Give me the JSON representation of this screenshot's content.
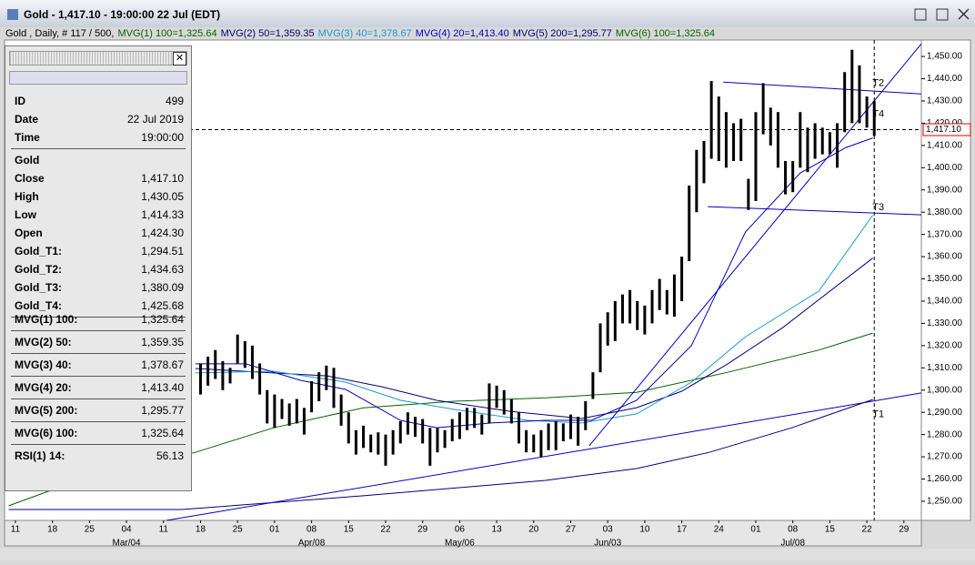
{
  "window": {
    "title": "Gold - 1,417.10 - 19:00:00  22 Jul (EDT)"
  },
  "legend": {
    "prefix": "Gold , Daily, # 117 / 500,",
    "items": [
      {
        "text": "MVG(1) 100=1,325.64",
        "color": "#006400"
      },
      {
        "text": "MVG(2) 50=1,359.35",
        "color": "#000080"
      },
      {
        "text": "MVG(3) 40=1,378.67",
        "color": "#1a9ad6"
      },
      {
        "text": "MVG(4) 20=1,413.40",
        "color": "#0000c0"
      },
      {
        "text": "MVG(5) 200=1,295.77",
        "color": "#000080"
      },
      {
        "text": "MVG(6) 100=1,325.64",
        "color": "#006400"
      }
    ]
  },
  "panel": {
    "rows": [
      {
        "label": "ID",
        "value": "499"
      },
      {
        "label": "Date",
        "value": "22 Jul 2019"
      },
      {
        "label": "Time",
        "value": "19:00:00"
      },
      {
        "label": "Gold"
      },
      {
        "label": "Close",
        "value": "1,417.10"
      },
      {
        "label": "High",
        "value": "1,430.05"
      },
      {
        "label": "Low",
        "value": "1,414.33"
      },
      {
        "label": "Open",
        "value": "1,424.30"
      },
      {
        "label": "Gold_T1:",
        "value": "1,294.51"
      },
      {
        "label": "Gold_T2:",
        "value": "1,434.63"
      },
      {
        "label": "Gold_T3:",
        "value": "1,380.09"
      },
      {
        "label": "Gold_T4:",
        "value": "1,425.68"
      },
      {
        "label": "MVG(1) 100:",
        "value": "1,325.64"
      },
      {
        "label": "MVG(2) 50:",
        "value": "1,359.35"
      },
      {
        "label": "MVG(3) 40:",
        "value": "1,378.67"
      },
      {
        "label": "MVG(4) 20:",
        "value": "1,413.40"
      },
      {
        "label": "MVG(5) 200:",
        "value": "1,295.77"
      },
      {
        "label": "MVG(6) 100:",
        "value": "1,325.64"
      },
      {
        "label": "RSI(1) 14:",
        "value": "56.13"
      }
    ]
  },
  "chart_data": {
    "type": "ohlc",
    "color": "#000000",
    "x": [
      25,
      26,
      27,
      28,
      29,
      30,
      31,
      32,
      33,
      34,
      35,
      36,
      37,
      38,
      39,
      40,
      41,
      42,
      43,
      44,
      45,
      46,
      47,
      48,
      49,
      50,
      51,
      52,
      53,
      54,
      55,
      56,
      57,
      58,
      59,
      60,
      61,
      62,
      63,
      64,
      65,
      66,
      67,
      68,
      69,
      70,
      71,
      72,
      73,
      74,
      75,
      76,
      77,
      78,
      79,
      80,
      81,
      82,
      83,
      84,
      85,
      86,
      87,
      88,
      89,
      90,
      91,
      92,
      93,
      94,
      95,
      96,
      97,
      98,
      99,
      100,
      101,
      102,
      103,
      104,
      105,
      106,
      107,
      108,
      109,
      110,
      111,
      112,
      113,
      114,
      115,
      116
    ],
    "high": [
      1312,
      1315,
      1318,
      1313,
      1310,
      1325,
      1322,
      1320,
      1312,
      1300,
      1298,
      1296,
      1294,
      1296,
      1292,
      1304,
      1308,
      1311,
      1310,
      1298,
      1290,
      1282,
      1284,
      1280,
      1281,
      1280,
      1282,
      1286,
      1290,
      1288,
      1287,
      1283,
      1283,
      1282,
      1287,
      1290,
      1292,
      1292,
      1289,
      1303,
      1302,
      1300,
      1296,
      1290,
      1282,
      1280,
      1282,
      1285,
      1286,
      1285,
      1289,
      1288,
      1295,
      1308,
      1330,
      1335,
      1340,
      1343,
      1345,
      1340,
      1338,
      1345,
      1350,
      1345,
      1352,
      1360,
      1392,
      1408,
      1412,
      1439,
      1432,
      1425,
      1420,
      1422,
      1395,
      1425,
      1438,
      1427,
      1425,
      1403,
      1403,
      1425,
      1418,
      1420,
      1418,
      1416,
      1420,
      1443,
      1453,
      1446,
      1432,
      1430.05
    ],
    "low": [
      1298,
      1302,
      1305,
      1300,
      1303,
      1312,
      1310,
      1305,
      1298,
      1285,
      1283,
      1287,
      1284,
      1285,
      1280,
      1290,
      1295,
      1300,
      1292,
      1284,
      1276,
      1271,
      1274,
      1272,
      1271,
      1266,
      1271,
      1276,
      1280,
      1279,
      1276,
      1266,
      1272,
      1274,
      1277,
      1278,
      1282,
      1283,
      1280,
      1285,
      1292,
      1289,
      1285,
      1276,
      1272,
      1272,
      1270,
      1273,
      1273,
      1277,
      1278,
      1275,
      1282,
      1296,
      1308,
      1320,
      1322,
      1330,
      1330,
      1327,
      1325,
      1330,
      1336,
      1334,
      1333,
      1340,
      1358,
      1380,
      1393,
      1404,
      1403,
      1400,
      1403,
      1403,
      1381,
      1385,
      1415,
      1410,
      1400,
      1388,
      1389,
      1400,
      1398,
      1404,
      1406,
      1406,
      1400,
      1416,
      1420,
      1420,
      1418,
      1414.33
    ],
    "xlim": [
      -1.47,
      122.36
    ],
    "ylim": [
      1241.4,
      1457.4
    ],
    "yticks": [
      {
        "value": 1250,
        "label": "1,250.00"
      },
      {
        "value": 1260,
        "label": "1,260.00"
      },
      {
        "value": 1270,
        "label": "1,270.00"
      },
      {
        "value": 1280,
        "label": "1,280.00"
      },
      {
        "value": 1290,
        "label": "1,290.00"
      },
      {
        "value": 1300,
        "label": "1,300.00"
      },
      {
        "value": 1310,
        "label": "1,310.00"
      },
      {
        "value": 1320,
        "label": "1,320.00"
      },
      {
        "value": 1330,
        "label": "1,330.00"
      },
      {
        "value": 1340,
        "label": "1,340.00"
      },
      {
        "value": 1350,
        "label": "1,350.00"
      },
      {
        "value": 1360,
        "label": "1,360.00"
      },
      {
        "value": 1370,
        "label": "1,370.00"
      },
      {
        "value": 1380,
        "label": "1,380.00"
      },
      {
        "value": 1390,
        "label": "1,390.00"
      },
      {
        "value": 1400,
        "label": "1,400.00"
      },
      {
        "value": 1410,
        "label": "1,410.00"
      },
      {
        "value": 1420,
        "label": "1,420.00"
      },
      {
        "value": 1430,
        "label": "1,430.00"
      },
      {
        "value": 1440,
        "label": "1,440.00"
      },
      {
        "value": 1450,
        "label": "1,450.00"
      }
    ],
    "xticks": [
      {
        "value": 0,
        "label": "11"
      },
      {
        "value": 5,
        "label": "18"
      },
      {
        "value": 10,
        "label": "25"
      },
      {
        "value": 15,
        "label": "04"
      },
      {
        "value": 20,
        "label": "11"
      },
      {
        "value": 25,
        "label": "18"
      },
      {
        "value": 30,
        "label": "25"
      },
      {
        "value": 35,
        "label": "01"
      },
      {
        "value": 40,
        "label": "08"
      },
      {
        "value": 45,
        "label": "15"
      },
      {
        "value": 50,
        "label": "22"
      },
      {
        "value": 55,
        "label": "29"
      },
      {
        "value": 60,
        "label": "06"
      },
      {
        "value": 65,
        "label": "13"
      },
      {
        "value": 70,
        "label": "20"
      },
      {
        "value": 75,
        "label": "27"
      },
      {
        "value": 80,
        "label": "03"
      },
      {
        "value": 85,
        "label": "10"
      },
      {
        "value": 90,
        "label": "17"
      },
      {
        "value": 95,
        "label": "24"
      },
      {
        "value": 100,
        "label": "01"
      },
      {
        "value": 105,
        "label": "08"
      },
      {
        "value": 110,
        "label": "15"
      },
      {
        "value": 115,
        "label": "22"
      },
      {
        "value": 120,
        "label": "29"
      }
    ],
    "month_ticks": [
      {
        "value": 15,
        "label": "Mar/04"
      },
      {
        "value": 40,
        "label": "Apr/08"
      },
      {
        "value": 60,
        "label": "May/06"
      },
      {
        "value": 80,
        "label": "Jun/03"
      },
      {
        "value": 105,
        "label": "Jul/08"
      }
    ],
    "series": [
      {
        "name": "MVG(1) 100",
        "color": "#006400",
        "x": [
          -0.9,
          6.5,
          24.3,
          34.8,
          47,
          59.3,
          71.6,
          83.9,
          96.2,
          108.5,
          115.8
        ],
        "values": [
          1248,
          1257,
          1272,
          1283,
          1292,
          1295,
          1296.5,
          1299,
          1308,
          1318,
          1325.64
        ]
      },
      {
        "name": "MVG(5) 200",
        "color": "#000080",
        "x": [
          -0.9,
          22.5,
          47,
          71.6,
          83.9,
          93.7,
          104.8,
          115.8
        ],
        "values": [
          1246.3,
          1246.3,
          1252.5,
          1259.4,
          1264.7,
          1272,
          1283,
          1295.77
        ]
      },
      {
        "name": "MVG(2) 50",
        "color": "#000080",
        "x": [
          24.3,
          34.8,
          42.1,
          49.5,
          56.9,
          66.7,
          76.5,
          83.9,
          90,
          96.2,
          103.6,
          115.8
        ],
        "values": [
          1309.7,
          1307.7,
          1306.4,
          1301.5,
          1295.4,
          1290.5,
          1287.2,
          1292.1,
          1299.5,
          1311.8,
          1328,
          1359.35
        ]
      },
      {
        "name": "MVG(3) 40",
        "color": "#1a9ad6",
        "x": [
          24.3,
          34.8,
          44.6,
          52,
          59.3,
          69.2,
          76.5,
          83.9,
          91.3,
          98.6,
          108.5,
          115.8
        ],
        "values": [
          1307.7,
          1308.5,
          1303.6,
          1295.4,
          1291.3,
          1286.4,
          1285.2,
          1289.3,
          1303.6,
          1324,
          1344.5,
          1378.67
        ]
      },
      {
        "name": "MVG(4) 20",
        "color": "#0000c0",
        "x": [
          24.3,
          31.1,
          38.5,
          44.6,
          52,
          56.9,
          64.3,
          71.6,
          77.8,
          83.9,
          91.3,
          98.6,
          106,
          112.2,
          115.8
        ],
        "values": [
          1311.8,
          1311.8,
          1304.4,
          1300.3,
          1286.4,
          1283.1,
          1285.2,
          1286.4,
          1286.4,
          1295.4,
          1320,
          1371.1,
          1397.6,
          1409.1,
          1413.4
        ]
      }
    ],
    "trendlines": [
      {
        "name": "T1",
        "color": "#0000c0",
        "x": [
          20.4,
          122.36
        ],
        "values": [
          1241.4,
          1298.7
        ],
        "label_y": 1289
      },
      {
        "name": "T2",
        "color": "#0000c0",
        "x": [
          95.6,
          122.36
        ],
        "values": [
          1438.5,
          1433.2
        ],
        "label_y": 1438
      },
      {
        "name": "T3",
        "color": "#0000c0",
        "x": [
          93.5,
          122.36
        ],
        "values": [
          1382.5,
          1378.8
        ],
        "label_y": 1382
      },
      {
        "name": "T4",
        "color": "#0000c0",
        "x": [
          77.5,
          122.36
        ],
        "values": [
          1274.9,
          1455.7
        ],
        "label_y": 1424
      }
    ],
    "last_price": {
      "value": 1417.1,
      "label": "1,417.10"
    }
  }
}
